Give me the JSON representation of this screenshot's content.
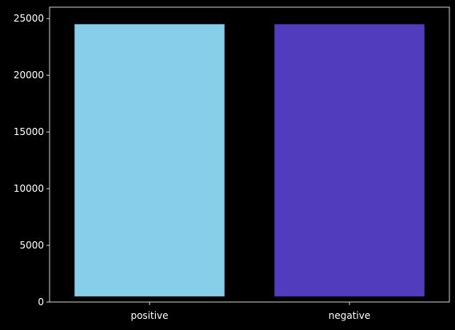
{
  "chart_data": {
    "type": "bar",
    "title": "",
    "xlabel": "",
    "ylabel": "",
    "categories": [
      "positive",
      "negative"
    ],
    "values": [
      24500,
      24500
    ],
    "baseline": 500,
    "bar_colors": [
      "#87ceeb",
      "#513cbd"
    ],
    "ylim": [
      0,
      26000
    ],
    "yticks": [
      0,
      5000,
      10000,
      15000,
      20000,
      25000
    ],
    "grid": false,
    "legend": "none",
    "background": "#000000",
    "axis_color": "#ffffff"
  }
}
